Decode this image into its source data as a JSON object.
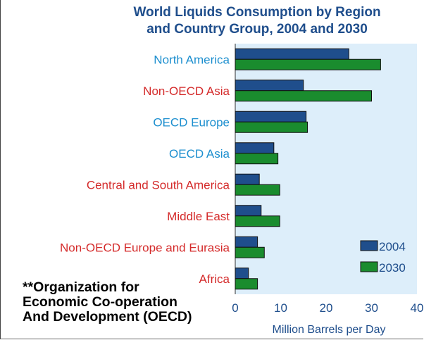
{
  "title_line1": "World Liquids Consumption by Region",
  "title_line2": "and Country Group, 2004 and 2030",
  "footnote_lines": [
    "**Organization for",
    "Economic Co-operation",
    "And Development (OECD)"
  ],
  "colors": {
    "plot_bg": "#ddeefa",
    "bar_2004": "#1f4e8c",
    "bar_2030": "#1a8c2e",
    "label_oecd": "#1d8fcf",
    "label_non_oecd": "#d42a2a",
    "title": "#1f4e8c"
  },
  "chart_data": {
    "type": "bar",
    "orientation": "horizontal",
    "title": "World Liquids Consumption by Region and Country Group, 2004 and 2030",
    "xlabel": "Million Barrels per Day",
    "ylabel": "",
    "xlim": [
      0,
      40
    ],
    "xticks": [
      0,
      10,
      20,
      30,
      40
    ],
    "grid": false,
    "legend_position": "bottom-right",
    "categories": [
      "North America",
      "Non-OECD Asia",
      "OECD Europe",
      "OECD Asia",
      "Central and South America",
      "Middle East",
      "Non-OECD Europe and Eurasia",
      "Africa"
    ],
    "category_group": [
      "oecd",
      "non_oecd",
      "oecd",
      "oecd",
      "non_oecd",
      "non_oecd",
      "non_oecd",
      "non_oecd"
    ],
    "series": [
      {
        "name": "2004",
        "values": [
          25,
          15,
          15.6,
          8.5,
          5.3,
          5.7,
          4.9,
          2.9
        ]
      },
      {
        "name": "2030",
        "values": [
          32,
          30,
          15.9,
          9.4,
          9.8,
          9.8,
          6.4,
          4.9
        ]
      }
    ]
  }
}
